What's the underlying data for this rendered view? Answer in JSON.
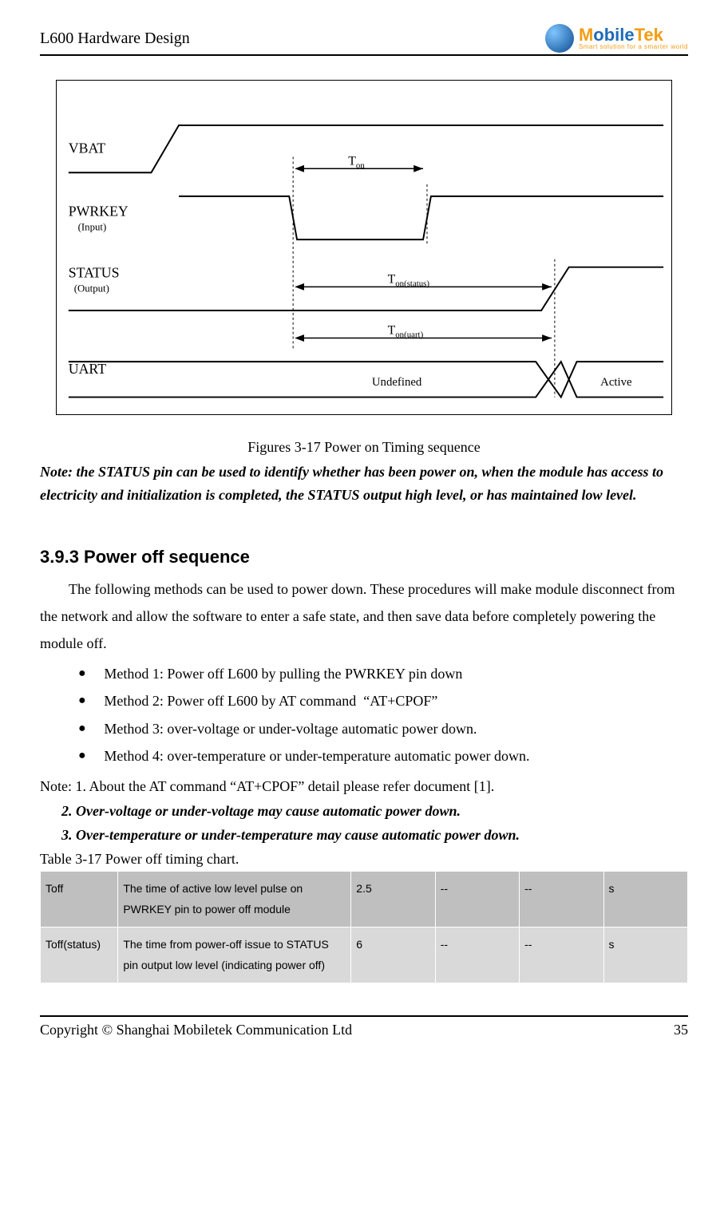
{
  "header": {
    "title": "L600 Hardware Design",
    "logo_text_1": "M",
    "logo_text_2": "obile",
    "logo_text_3": "Tek",
    "logo_tag": "Smart solution for a smarter world"
  },
  "diagram": {
    "signals": {
      "vbat": "VBAT",
      "pwrkey": "PWRKEY",
      "pwrkey_sub": "(Input)",
      "status": "STATUS",
      "status_sub": "(Output)",
      "uart": "UART"
    },
    "labels": {
      "ton": "T",
      "ton_sub": "on",
      "ton_status": "T",
      "ton_status_sub": "on(status)",
      "ton_uart": "T",
      "ton_uart_sub": "on(uart)",
      "undefined": "Undefined",
      "active": "Active"
    },
    "stroke_color": "#000000",
    "dash_color": "#000000",
    "font_signal_size": 18,
    "font_sub_size": 13,
    "font_label_size": 16
  },
  "figure": {
    "caption": "Figures 3-17 Power on Timing sequence",
    "note": "Note: the STATUS pin can be used to identify whether has been power on, when the module has access to electricity and initialization is completed, the STATUS output high level, or has maintained low level."
  },
  "section": {
    "heading": "3.9.3 Power off sequence",
    "intro": "The following methods can be used to power down. These procedures will make module disconnect from the network and allow the software to enter a safe state, and then save data before completely powering the module off.",
    "bullets": [
      "Method 1: Power off L600 by pulling the PWRKEY pin down",
      "Method 2: Power off L600 by AT command  “AT+CPOF”",
      "Method 3: over-voltage or under-voltage automatic power down.",
      "Method 4: over-temperature or under-temperature automatic power down."
    ],
    "notes_line1": "Note: 1. About the AT command “AT+CPOF” detail please refer document [1].",
    "notes_line2": "2. Over-voltage or under-voltage may cause automatic power down.",
    "notes_line3": "3. Over-temperature or under-temperature may cause automatic power down.",
    "table_caption": "Table 3-17 Power off timing chart."
  },
  "table": {
    "rows": [
      {
        "param": "Toff",
        "desc": "The time of active low level pulse on PWRKEY pin to power off module",
        "v1": "2.5",
        "v2": "--",
        "v3": "--",
        "unit": "s",
        "rowClass": "row-a"
      },
      {
        "param": "Toff(status)",
        "desc": "The time from power-off issue to STATUS pin output low level (indicating power off)",
        "v1": "6",
        "v2": "--",
        "v3": "--",
        "unit": "s",
        "rowClass": "row-b"
      }
    ]
  },
  "footer": {
    "copyright": "Copyright © Shanghai Mobiletek Communication Ltd",
    "page": "35"
  }
}
